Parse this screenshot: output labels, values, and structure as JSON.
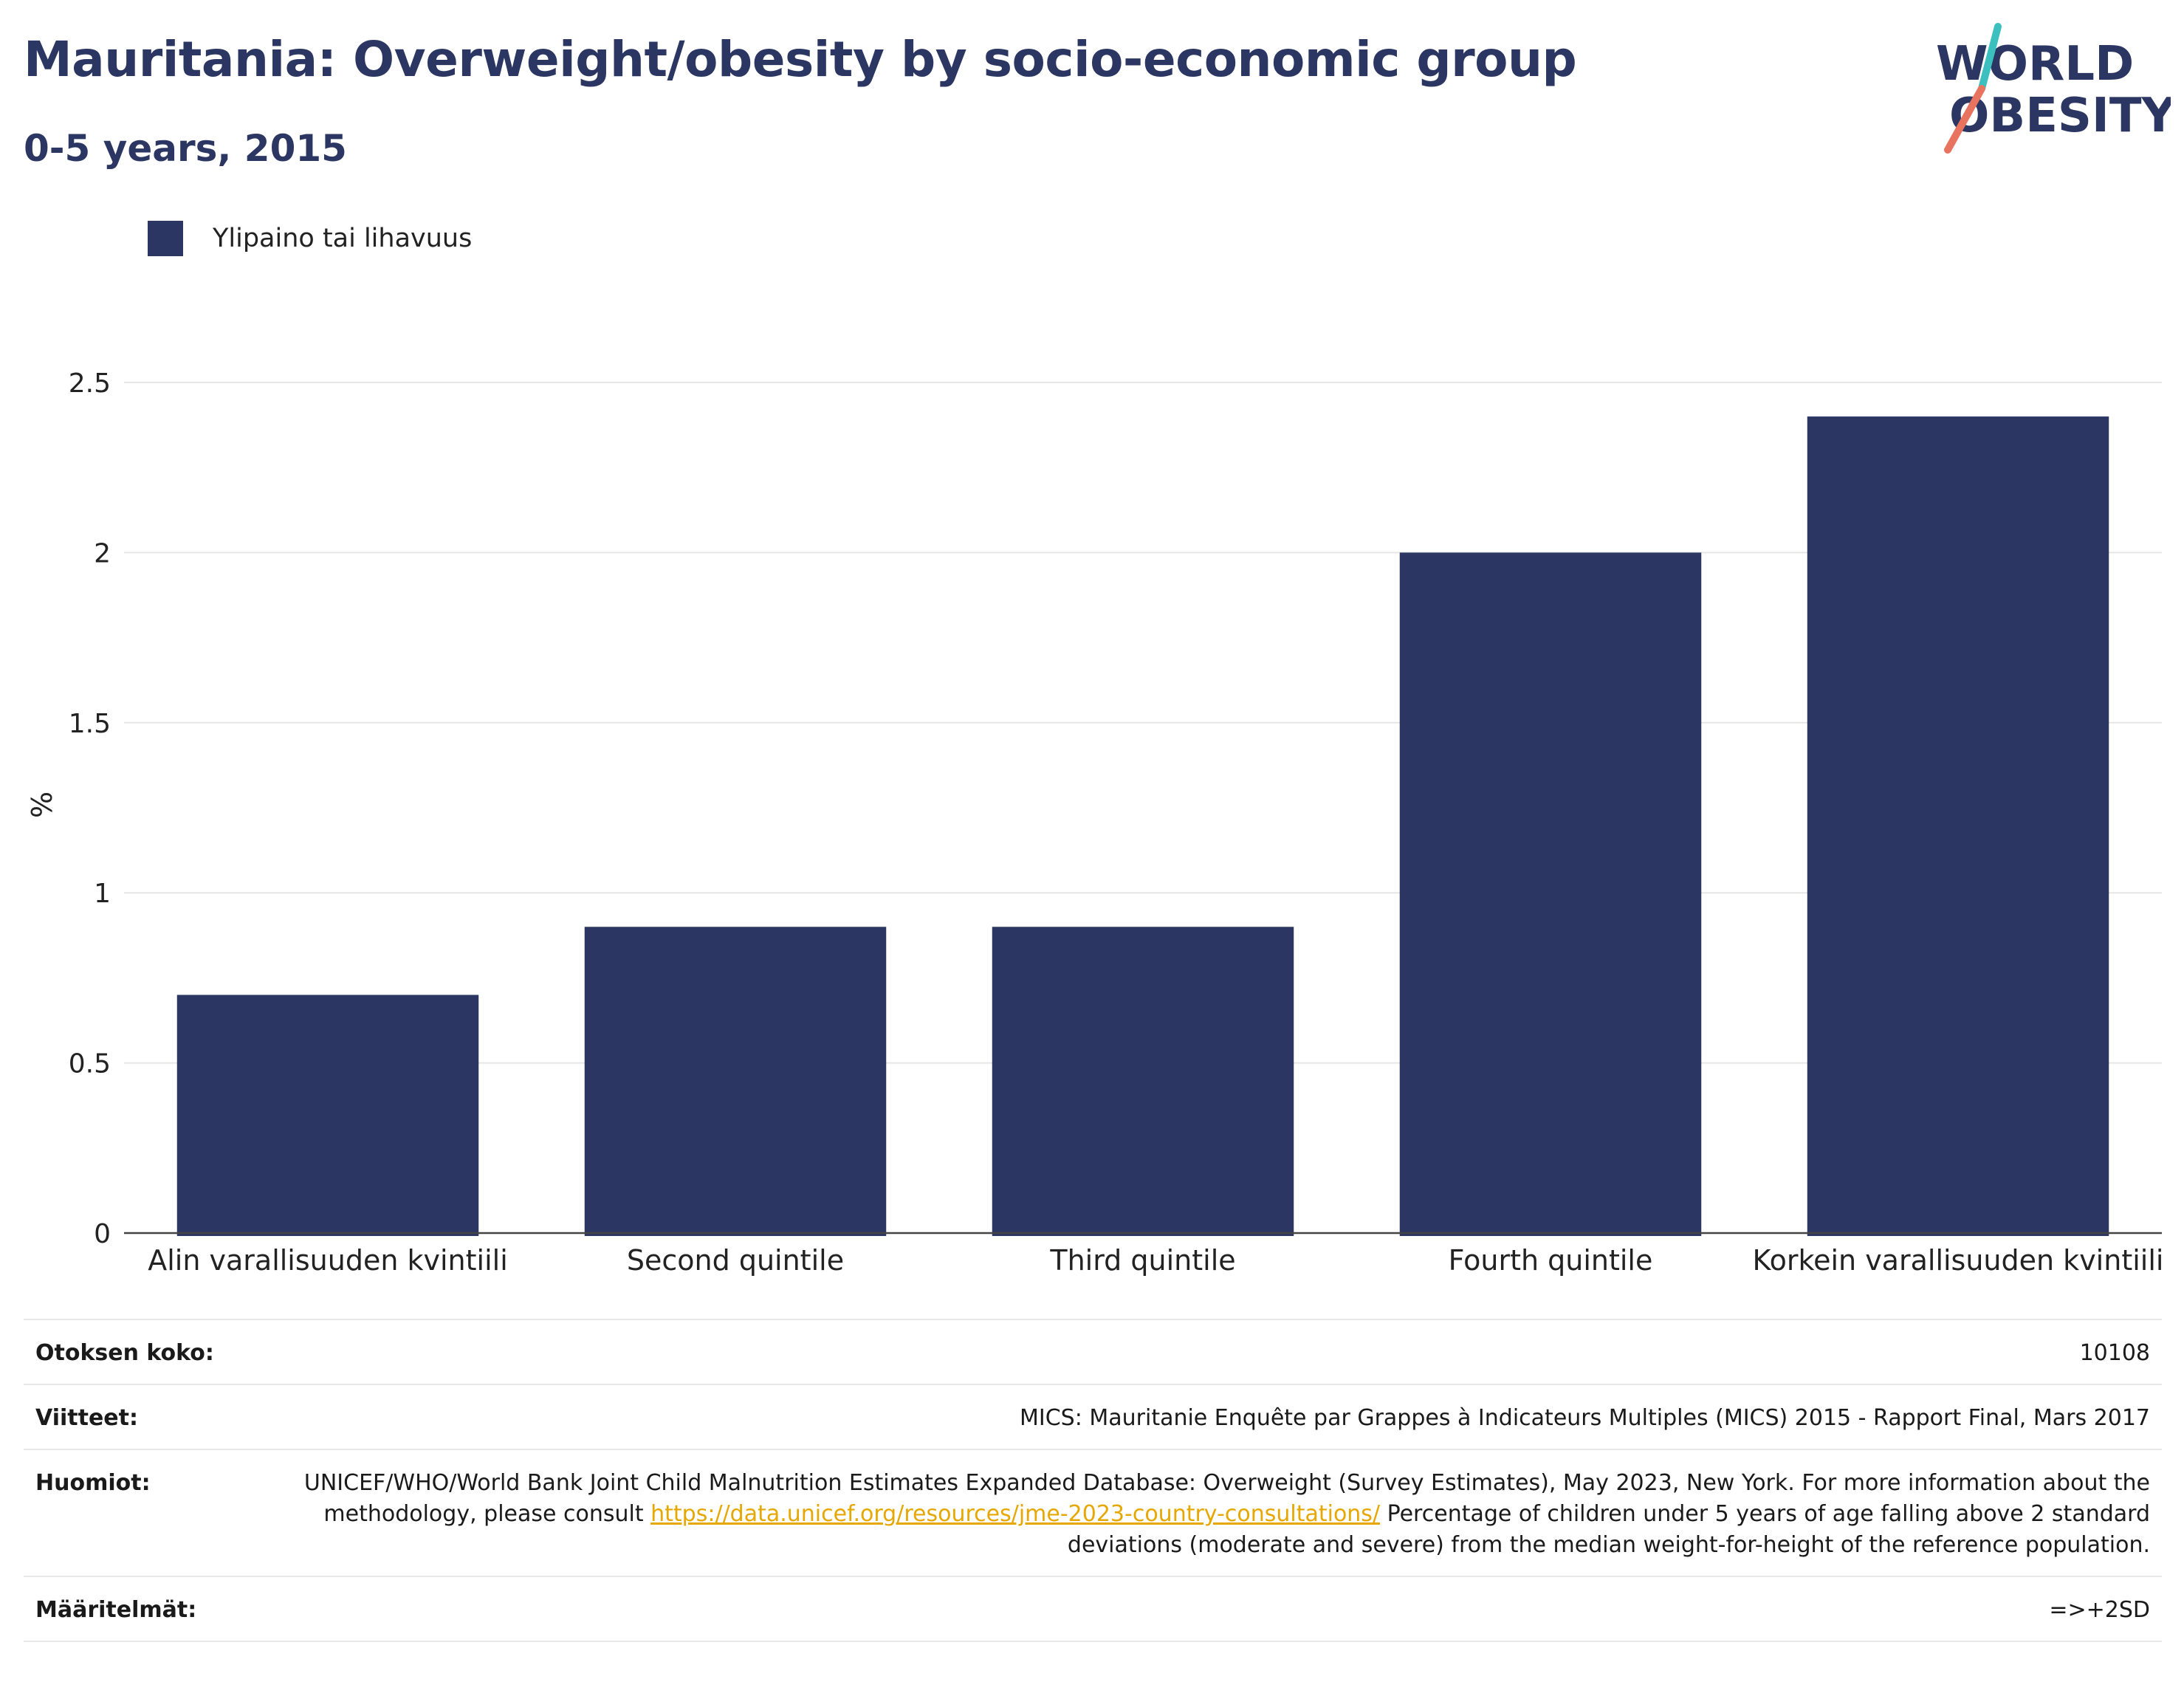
{
  "title": "Mauritania: Overweight/obesity by socio-economic group",
  "subtitle": "0-5 years, 2015",
  "logo": {
    "line1": "WORLD",
    "line2": "OBESITY"
  },
  "colors": {
    "bar": "#2b3762",
    "title": "#2b3762",
    "logo_slash_teal": "#3bbfbf",
    "logo_slash_red": "#e8735f",
    "link": "#e6a700",
    "grid": "#e6e6e6"
  },
  "chart_data": {
    "type": "bar",
    "categories": [
      "Alin varallisuuden kvintiili",
      "Second quintile",
      "Third quintile",
      "Fourth quintile",
      "Korkein varallisuuden kvintiili"
    ],
    "series": [
      {
        "name": "Ylipaino tai lihavuus",
        "values": [
          0.7,
          0.9,
          0.9,
          2.0,
          2.4
        ]
      }
    ],
    "ylabel": "%",
    "xlabel": "",
    "ylim": [
      0,
      2.5
    ],
    "yticks": [
      0,
      0.5,
      1,
      1.5,
      2,
      2.5
    ],
    "ytick_labels": [
      "0",
      "0.5",
      "1",
      "1.5",
      "2",
      "2.5"
    ],
    "grid": true,
    "legend_position": "top-left"
  },
  "info": {
    "sample_size": {
      "label": "Otoksen koko:",
      "value": "10108"
    },
    "references": {
      "label": "Viitteet:",
      "value": "MICS: Mauritanie Enquête par Grappes à Indicateurs Multiples (MICS) 2015 - Rapport Final, Mars 2017"
    },
    "notes": {
      "label": "Huomiot:",
      "text1": "UNICEF/WHO/World Bank Joint Child Malnutrition Estimates Expanded Database: Overweight (Survey Estimates), May 2023, New York. For more information about the methodology, please consult ",
      "link": "https://data.unicef.org/resources/jme-2023-country-consultations/",
      "text2": " Percentage of children under 5 years of age falling above 2 standard deviations (moderate and severe) from the median weight-for-height of the reference population."
    },
    "definitions": {
      "label": "Määritelmät:",
      "value": "=>+2SD"
    }
  }
}
